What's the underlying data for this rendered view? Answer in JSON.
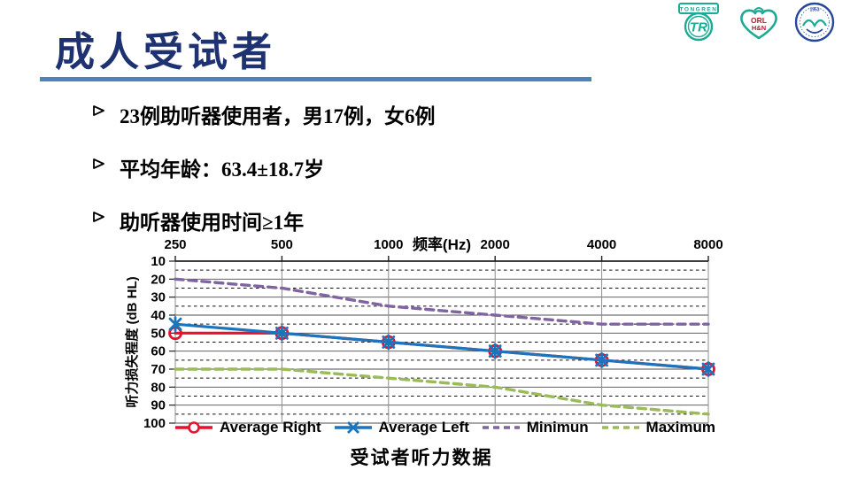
{
  "slide": {
    "title": "成人受试者",
    "bullets": [
      "23例助听器使用者，男17例，女6例",
      "平均年龄：63.4±18.7岁",
      "助听器使用时间≥1年"
    ],
    "caption": "受试者听力数据"
  },
  "logos": {
    "tongren_text": "TONGREN",
    "tongren_monogram": "TR",
    "orl_line1": "ORL",
    "orl_line2": "H&N",
    "seal_year": "1953"
  },
  "theme": {
    "title_color": "#1e3170",
    "underline_color": "#4f81bd",
    "logo_teal": "#1caa96",
    "seal_navy": "#27489c"
  },
  "chart_data": {
    "type": "line",
    "x_axis_title": "频率(Hz)",
    "y_axis_title": "听力损失程度 (dB  HL)",
    "x_categories": [
      250,
      500,
      1000,
      2000,
      4000,
      8000
    ],
    "y_min": 10,
    "y_max": 100,
    "y_major_step": 10,
    "y_minor_step": 5,
    "y_axis_reversed": true,
    "grid": "major-solid-minor-dashed",
    "legend_position": "bottom",
    "series": [
      {
        "name": "Average Right",
        "color": "#e8112d",
        "style": "solid",
        "marker": "circle",
        "values": [
          50,
          50,
          55,
          60,
          65,
          70
        ]
      },
      {
        "name": "Average Left",
        "color": "#1b74bc",
        "style": "solid",
        "marker": "x-star",
        "values": [
          45,
          50,
          55,
          60,
          65,
          70
        ]
      },
      {
        "name": "Minimun",
        "color": "#8064a2",
        "style": "dashed",
        "marker": "none",
        "values": [
          20,
          25,
          35,
          40,
          45,
          45
        ]
      },
      {
        "name": "Maximum",
        "color": "#9bbb59",
        "style": "dashed",
        "marker": "none",
        "values": [
          70,
          70,
          75,
          80,
          90,
          95
        ]
      }
    ]
  }
}
